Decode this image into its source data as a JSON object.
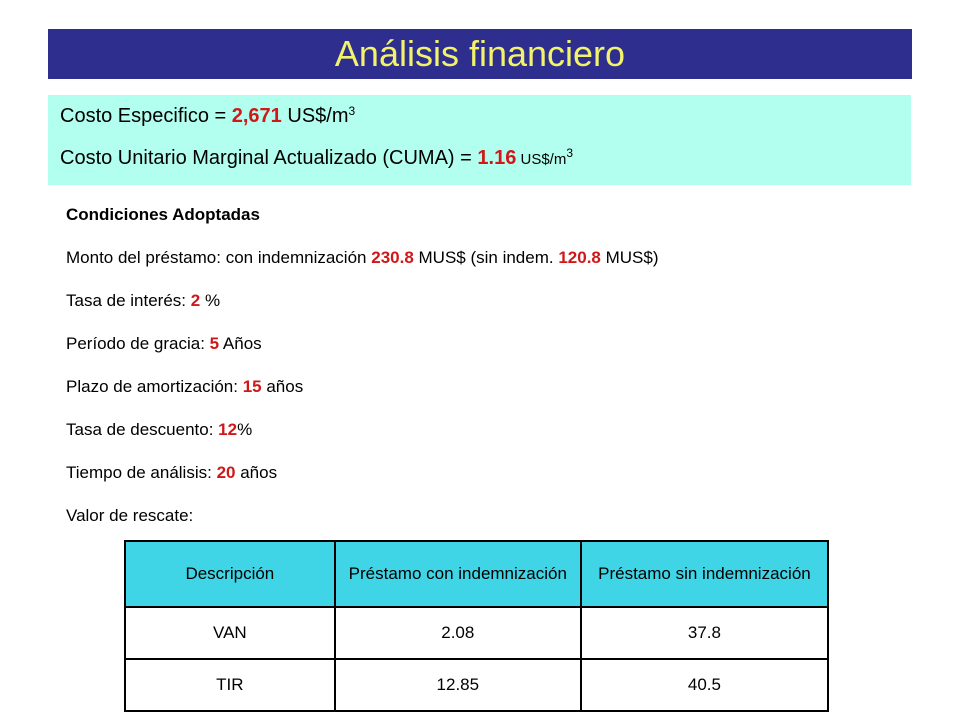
{
  "title": "Análisis financiero",
  "colors": {
    "title_bg": "#2e2e8f",
    "title_text": "#f2f26b",
    "cost_box_bg": "#b3ffef",
    "highlight": "#d01818",
    "table_header_bg": "#3fd5e6"
  },
  "costs": {
    "especifico": {
      "label": "Costo Especifico = ",
      "value": "2,671",
      "unit": " US$/m",
      "unit_sup": "3"
    },
    "cuma": {
      "label": "Costo Unitario Marginal Actualizado (CUMA) = ",
      "value": "1.16",
      "unit": " US$/m",
      "unit_sup": "3"
    }
  },
  "conditions": {
    "heading": "Condiciones Adoptadas",
    "prestamo": {
      "label": "Monto del préstamo: con indemnización ",
      "value1": "230.8",
      "mid": " MUS$ (sin indem. ",
      "value2": "120.8",
      "end": " MUS$)"
    },
    "interes": {
      "label": "Tasa de interés: ",
      "value": "2",
      "suffix": " %"
    },
    "gracia": {
      "label": "Período de gracia: ",
      "value": "5",
      "suffix": " Años"
    },
    "amortizacion": {
      "label": "Plazo de amortización: ",
      "value": "15",
      "suffix": " años"
    },
    "descuento": {
      "label": "Tasa de descuento: ",
      "value": "12",
      "suffix": "%"
    },
    "analisis": {
      "label": "Tiempo de análisis: ",
      "value": "20",
      "suffix": " años"
    },
    "rescate": {
      "label": "Valor de rescate:"
    }
  },
  "table": {
    "headers": [
      "Descripción",
      "Préstamo con indemnización",
      "Préstamo sin indemnización"
    ],
    "rows": [
      [
        "VAN",
        "2.08",
        "37.8"
      ],
      [
        "TIR",
        "12.85",
        "40.5"
      ]
    ]
  }
}
